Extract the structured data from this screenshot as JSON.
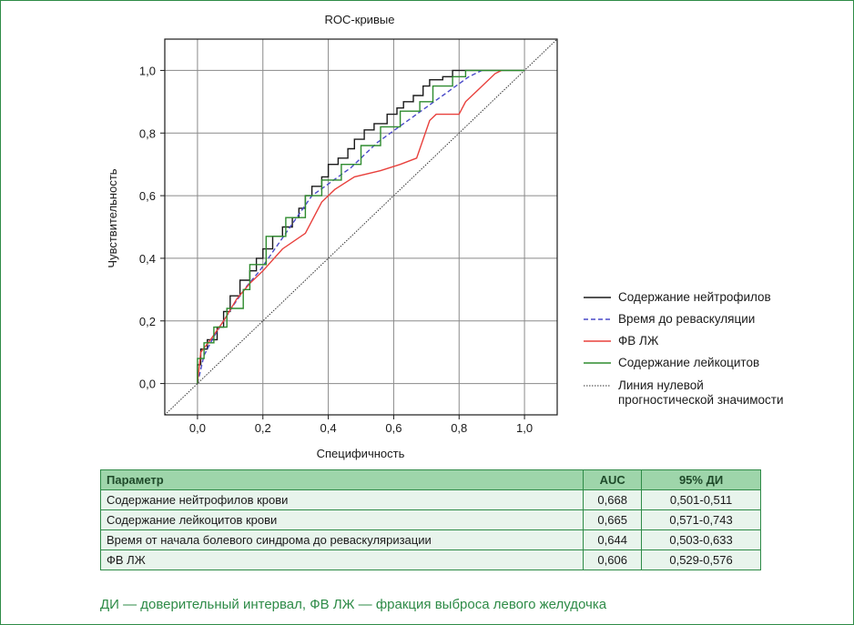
{
  "chart_data": {
    "type": "line",
    "title": "ROC-кривые",
    "xlabel": "Специфичность",
    "ylabel": "Чувствительность",
    "xlim": [
      -0.1,
      1.1
    ],
    "ylim": [
      -0.1,
      1.1
    ],
    "xticks": [
      "0,0",
      "0,2",
      "0,4",
      "0,6",
      "0,8",
      "1,0"
    ],
    "yticks": [
      "0,0",
      "0,2",
      "0,4",
      "0,6",
      "0,8",
      "1,0"
    ],
    "xtick_values": [
      0,
      0.2,
      0.4,
      0.6,
      0.8,
      1.0
    ],
    "ytick_values": [
      0,
      0.2,
      0.4,
      0.6,
      0.8,
      1.0
    ],
    "grid": true,
    "legend_position": "right",
    "series": [
      {
        "name": "Содержание нейтрофилов",
        "color": "#1a1a1a",
        "dash": "solid",
        "x": [
          0,
          0,
          0.01,
          0.01,
          0.03,
          0.03,
          0.06,
          0.06,
          0.08,
          0.08,
          0.1,
          0.1,
          0.13,
          0.13,
          0.16,
          0.16,
          0.18,
          0.18,
          0.2,
          0.2,
          0.23,
          0.23,
          0.26,
          0.26,
          0.29,
          0.29,
          0.31,
          0.31,
          0.33,
          0.33,
          0.35,
          0.35,
          0.38,
          0.38,
          0.4,
          0.4,
          0.43,
          0.43,
          0.46,
          0.46,
          0.48,
          0.48,
          0.51,
          0.51,
          0.54,
          0.54,
          0.58,
          0.58,
          0.61,
          0.61,
          0.63,
          0.63,
          0.66,
          0.66,
          0.69,
          0.69,
          0.71,
          0.71,
          0.75,
          0.75,
          0.78,
          0.78,
          0.8,
          0.8,
          0.84,
          0.84,
          0.88,
          0.88,
          0.92,
          1.0
        ],
        "y": [
          0,
          0.06,
          0.06,
          0.11,
          0.11,
          0.14,
          0.14,
          0.18,
          0.18,
          0.23,
          0.23,
          0.28,
          0.28,
          0.33,
          0.33,
          0.36,
          0.36,
          0.4,
          0.4,
          0.43,
          0.43,
          0.47,
          0.47,
          0.5,
          0.5,
          0.53,
          0.53,
          0.56,
          0.56,
          0.6,
          0.6,
          0.63,
          0.63,
          0.66,
          0.66,
          0.7,
          0.7,
          0.72,
          0.72,
          0.75,
          0.75,
          0.78,
          0.78,
          0.81,
          0.81,
          0.83,
          0.83,
          0.86,
          0.86,
          0.88,
          0.88,
          0.9,
          0.9,
          0.92,
          0.92,
          0.95,
          0.95,
          0.97,
          0.97,
          0.98,
          0.98,
          1.0,
          1.0,
          1.0,
          1.0,
          1.0,
          1.0,
          1.0,
          1.0,
          1.0
        ]
      },
      {
        "name": "Время до реваскуляции",
        "color": "#4a4ac8",
        "dash": "dashed",
        "x": [
          0,
          0.02,
          0.05,
          0.08,
          0.11,
          0.15,
          0.19,
          0.23,
          0.27,
          0.31,
          0.35,
          0.39,
          0.43,
          0.47,
          0.51,
          0.55,
          0.59,
          0.63,
          0.67,
          0.71,
          0.75,
          0.79,
          0.83,
          0.87
        ],
        "y": [
          0,
          0.09,
          0.15,
          0.2,
          0.25,
          0.31,
          0.36,
          0.42,
          0.48,
          0.54,
          0.6,
          0.63,
          0.66,
          0.69,
          0.73,
          0.77,
          0.8,
          0.83,
          0.86,
          0.89,
          0.92,
          0.95,
          0.98,
          1.0
        ]
      },
      {
        "name": "ФВ ЛЖ",
        "color": "#e8403c",
        "dash": "solid",
        "x": [
          0,
          0.01,
          0.04,
          0.08,
          0.12,
          0.16,
          0.2,
          0.26,
          0.33,
          0.38,
          0.42,
          0.48,
          0.56,
          0.62,
          0.67,
          0.71,
          0.73,
          0.8,
          0.82,
          0.86,
          0.91,
          0.93
        ],
        "y": [
          0,
          0.1,
          0.14,
          0.2,
          0.27,
          0.32,
          0.36,
          0.43,
          0.48,
          0.58,
          0.62,
          0.66,
          0.68,
          0.7,
          0.72,
          0.84,
          0.86,
          0.86,
          0.9,
          0.94,
          0.99,
          1.0
        ]
      },
      {
        "name": "Содержание лейкоцитов",
        "color": "#2e8b2e",
        "dash": "solid",
        "x": [
          0,
          0,
          0.02,
          0.02,
          0.05,
          0.05,
          0.09,
          0.09,
          0.14,
          0.14,
          0.16,
          0.16,
          0.21,
          0.21,
          0.27,
          0.27,
          0.33,
          0.33,
          0.38,
          0.38,
          0.44,
          0.44,
          0.5,
          0.5,
          0.56,
          0.56,
          0.62,
          0.62,
          0.68,
          0.68,
          0.72,
          0.72,
          0.78,
          0.78,
          0.82,
          0.82,
          0.9,
          1.0
        ],
        "y": [
          0,
          0.08,
          0.08,
          0.13,
          0.13,
          0.18,
          0.18,
          0.24,
          0.24,
          0.3,
          0.3,
          0.38,
          0.38,
          0.47,
          0.47,
          0.53,
          0.53,
          0.6,
          0.6,
          0.65,
          0.65,
          0.7,
          0.7,
          0.76,
          0.76,
          0.82,
          0.82,
          0.87,
          0.87,
          0.9,
          0.9,
          0.95,
          0.95,
          0.98,
          0.98,
          1.0,
          1.0,
          1.0
        ]
      },
      {
        "name": "Линия нулевой прогностической значимости",
        "color": "#333333",
        "dash": "dotted",
        "x": [
          -0.1,
          1.1
        ],
        "y": [
          -0.1,
          1.1
        ]
      }
    ]
  },
  "table": {
    "headers": [
      "Параметр",
      "AUC",
      "95% ДИ"
    ],
    "rows": [
      [
        "Содержание нейтрофилов крови",
        "0,668",
        "0,501-0,511"
      ],
      [
        "Содержание лейкоцитов крови",
        "0,665",
        "0,571-0,743"
      ],
      [
        "Время от начала болевого синдрома до реваскуляризации",
        "0,644",
        "0,503-0,633"
      ],
      [
        "ФВ ЛЖ",
        "0,606",
        "0,529-0,576"
      ]
    ]
  },
  "footnote": "ДИ — доверительный интервал, ФВ ЛЖ — фракция выброса левого желудочка",
  "colors": {
    "accent_green": "#2e8b47",
    "table_header_bg": "#9ed5aa",
    "table_row_bg": "#e8f4ec"
  }
}
